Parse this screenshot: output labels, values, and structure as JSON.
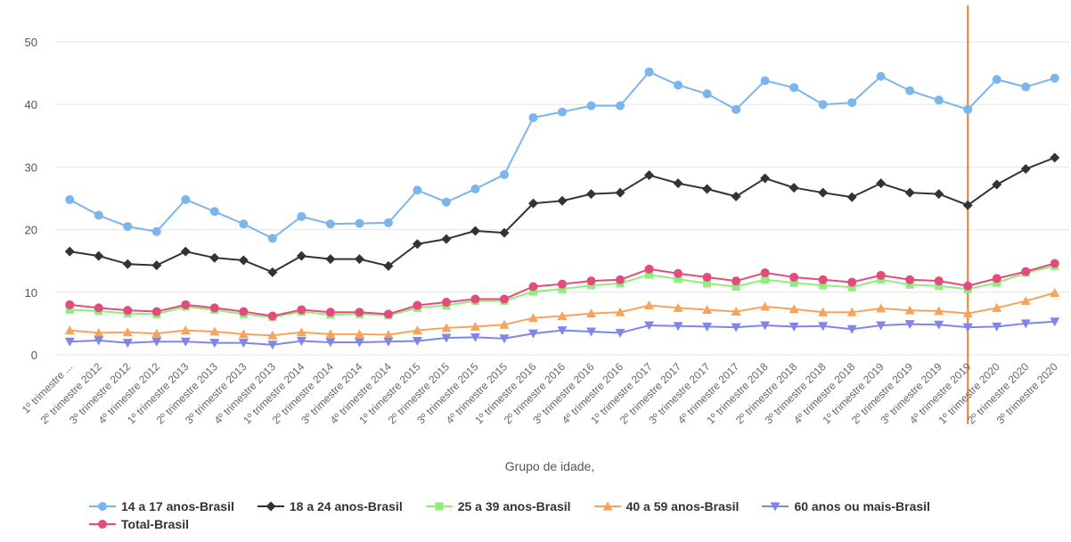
{
  "chart_data": {
    "type": "line",
    "title": "",
    "xlabel": "Grupo de idade,",
    "ylabel": "",
    "ylim": [
      0,
      50
    ],
    "yticks": [
      0,
      10,
      20,
      30,
      40,
      50
    ],
    "grid": true,
    "legend_position": "bottom",
    "categories": [
      "1º trimestre ...",
      "2º trimestre 2012",
      "3º trimestre 2012",
      "4º trimestre 2012",
      "1º trimestre 2013",
      "2º trimestre 2013",
      "3º trimestre 2013",
      "4º trimestre 2013",
      "1º trimestre 2014",
      "2º trimestre 2014",
      "3º trimestre 2014",
      "4º trimestre 2014",
      "1º trimestre 2015",
      "2º trimestre 2015",
      "3º trimestre 2015",
      "4º trimestre 2015",
      "1º trimestre 2016",
      "2º trimestre 2016",
      "3º trimestre 2016",
      "4º trimestre 2016",
      "1º trimestre 2017",
      "2º trimestre 2017",
      "3º trimestre 2017",
      "4º trimestre 2017",
      "1º trimestre 2018",
      "2º trimestre 2018",
      "3º trimestre 2018",
      "4º trimestre 2018",
      "1º trimestre 2019",
      "2º trimestre 2019",
      "3º trimestre 2019",
      "4º trimestre 2019",
      "1º trimestre 2020",
      "2º trimestre 2020",
      "3º trimestre 2020"
    ],
    "reference_line": {
      "category": "4º trimestre 2019",
      "color": "#e8833a"
    },
    "series": [
      {
        "name": "14 a 17 anos-Brasil",
        "color": "#7cb5ec",
        "marker": "circle",
        "values": [
          24.8,
          22.3,
          20.5,
          19.7,
          24.8,
          22.9,
          20.9,
          18.6,
          22.1,
          20.9,
          21.0,
          21.1,
          26.3,
          24.4,
          26.5,
          28.8,
          37.9,
          38.8,
          39.8,
          39.8,
          45.2,
          43.1,
          41.7,
          39.2,
          43.8,
          42.7,
          40.0,
          40.3,
          44.5,
          42.2,
          40.7,
          39.2,
          44.0,
          42.8,
          44.2
        ]
      },
      {
        "name": "18 a 24 anos-Brasil",
        "color": "#333333",
        "marker": "diamond",
        "values": [
          16.5,
          15.8,
          14.5,
          14.3,
          16.5,
          15.5,
          15.1,
          13.2,
          15.8,
          15.3,
          15.3,
          14.2,
          17.7,
          18.5,
          19.8,
          19.5,
          24.2,
          24.6,
          25.7,
          25.9,
          28.7,
          27.4,
          26.5,
          25.3,
          28.2,
          26.7,
          25.9,
          25.2,
          27.4,
          25.9,
          25.7,
          23.9,
          27.2,
          29.7,
          31.5
        ]
      },
      {
        "name": "25 a 39 anos-Brasil",
        "color": "#90ed7d",
        "marker": "square",
        "values": [
          7.2,
          7.0,
          6.6,
          6.5,
          7.7,
          7.2,
          6.5,
          6.0,
          6.9,
          6.4,
          6.5,
          6.3,
          7.5,
          7.9,
          8.6,
          8.6,
          10.1,
          10.5,
          11.1,
          11.4,
          12.8,
          12.1,
          11.4,
          10.9,
          12.0,
          11.5,
          11.1,
          10.8,
          12.0,
          11.2,
          11.0,
          10.5,
          11.5,
          13.1,
          14.2
        ]
      },
      {
        "name": "40 a 59 anos-Brasil",
        "color": "#f7a35c",
        "marker": "triangle",
        "values": [
          3.9,
          3.5,
          3.6,
          3.4,
          3.9,
          3.7,
          3.3,
          3.1,
          3.6,
          3.3,
          3.3,
          3.2,
          3.9,
          4.3,
          4.5,
          4.8,
          5.9,
          6.2,
          6.6,
          6.8,
          7.9,
          7.5,
          7.2,
          6.9,
          7.7,
          7.3,
          6.8,
          6.8,
          7.4,
          7.1,
          7.0,
          6.6,
          7.5,
          8.6,
          9.9
        ]
      },
      {
        "name": "60 anos ou mais-Brasil",
        "color": "#8085e9",
        "marker": "triangle-down",
        "values": [
          2.1,
          2.3,
          1.9,
          2.1,
          2.1,
          1.9,
          1.9,
          1.6,
          2.2,
          2.0,
          2.0,
          2.1,
          2.2,
          2.7,
          2.8,
          2.6,
          3.4,
          3.9,
          3.7,
          3.5,
          4.7,
          4.6,
          4.5,
          4.4,
          4.7,
          4.5,
          4.6,
          4.1,
          4.7,
          4.9,
          4.8,
          4.4,
          4.5,
          5.0,
          5.3
        ]
      },
      {
        "name": "Total-Brasil",
        "color": "#e44b7d",
        "marker": "circle",
        "values": [
          8.0,
          7.5,
          7.1,
          6.9,
          8.0,
          7.5,
          6.9,
          6.2,
          7.2,
          6.8,
          6.8,
          6.5,
          7.9,
          8.4,
          8.9,
          8.9,
          10.9,
          11.3,
          11.8,
          12.0,
          13.7,
          13.0,
          12.4,
          11.8,
          13.1,
          12.4,
          12.0,
          11.6,
          12.7,
          12.0,
          11.8,
          11.0,
          12.2,
          13.3,
          14.6
        ]
      }
    ]
  }
}
